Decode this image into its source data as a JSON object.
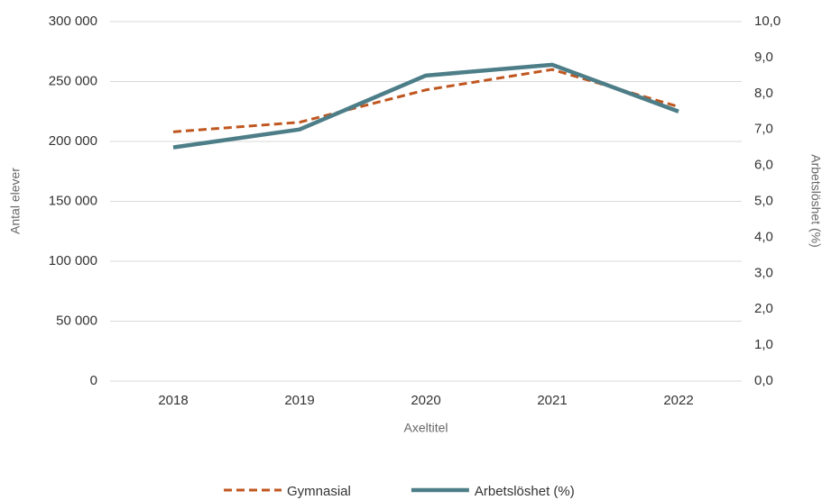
{
  "chart_data": {
    "type": "line",
    "categories": [
      "2018",
      "2019",
      "2020",
      "2021",
      "2022"
    ],
    "series": [
      {
        "name": "Gymnasial",
        "color": "#c0561f",
        "line_style": "dashed",
        "values": [
          208000,
          216000,
          243000,
          260000,
          229000
        ]
      },
      {
        "name": "Arbetslöshet (%)",
        "color": "#4d7e88",
        "line_style": "solid",
        "axis": "y2",
        "values": [
          6.5,
          7.0,
          8.5,
          8.8,
          7.5
        ]
      }
    ],
    "ylabel": "Antal elever",
    "y2label": "Arbetslöshet (%)",
    "xlabel": "Axeltitel",
    "ylim": [
      0,
      300000
    ],
    "yticks": [
      0,
      {
        "value": 50000,
        "label": "50 000"
      },
      {
        "value": 100000,
        "label": "100 000"
      },
      {
        "value": 150000,
        "label": "150 000"
      },
      {
        "value": 200000,
        "label": "200 000"
      },
      {
        "value": 250000,
        "label": "250 000"
      },
      {
        "value": 300000,
        "label": "300 000"
      }
    ],
    "y2lim": [
      0,
      10
    ],
    "y2ticks": [
      {
        "value": 0,
        "label": "0,0"
      },
      {
        "value": 1,
        "label": "1,0"
      },
      {
        "value": 2,
        "label": "2,0"
      },
      {
        "value": 3,
        "label": "3,0"
      },
      {
        "value": 4,
        "label": "4,0"
      },
      {
        "value": 5,
        "label": "5,0"
      },
      {
        "value": 6,
        "label": "6,0"
      },
      {
        "value": 7,
        "label": "7,0"
      },
      {
        "value": 8,
        "label": "8,0"
      },
      {
        "value": 9,
        "label": "9,0"
      },
      {
        "value": 10,
        "label": "10,0"
      }
    ],
    "grid": true,
    "legend": "bottom"
  }
}
